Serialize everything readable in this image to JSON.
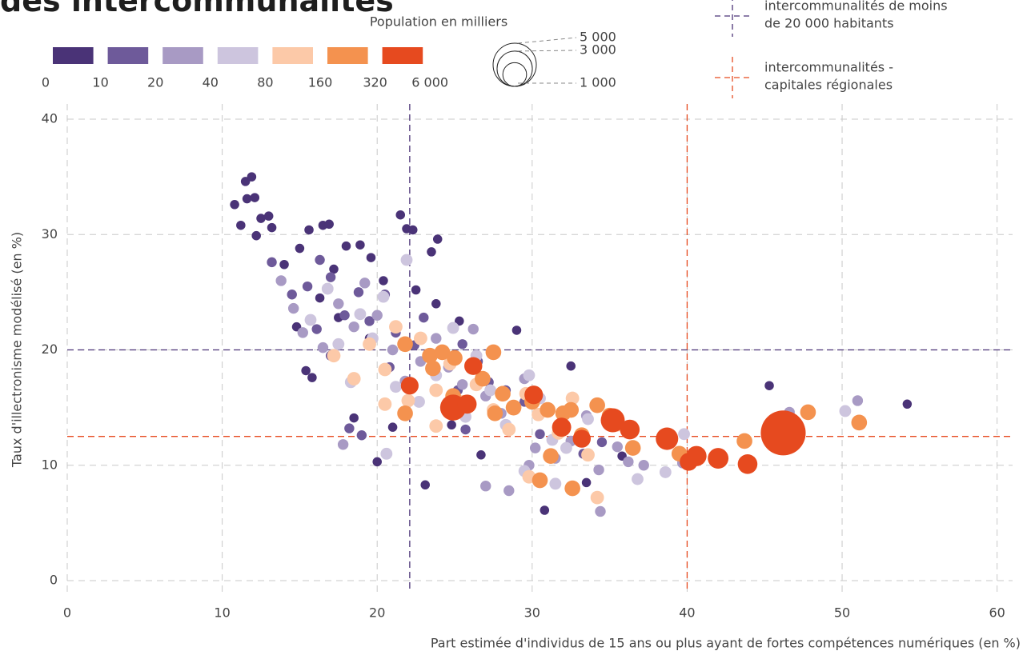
{
  "chart_data": {
    "type": "bubble",
    "title": "des intercommunalités",
    "x_label": "Part estimée d'individus de 15 ans ou plus ayant de fortes compétences numériques (en %)",
    "y_label": "Taux d'illectronisme modélisé (en %)",
    "xlim": [
      0,
      61
    ],
    "ylim": [
      0,
      40
    ],
    "xticks": [
      0,
      10,
      20,
      30,
      40,
      50,
      60
    ],
    "yticks": [
      0,
      10,
      20,
      30,
      40
    ],
    "grid": true,
    "classes": {
      "breaks": [
        0,
        10,
        20,
        40,
        80,
        160,
        320,
        {
          "value": 6000,
          "label": "6 000"
        }
      ],
      "colors": [
        "#4a3377",
        "#6e5a9a",
        "#a89ac4",
        "#cdc5de",
        "#fcc9a8",
        "#f4924f",
        "#e64a1f"
      ]
    },
    "size_legend": {
      "title": "Population en milliers",
      "values": [
        {
          "value": 5000,
          "label": "5 000"
        },
        {
          "value": 3000,
          "label": "3 000"
        },
        {
          "value": 1000,
          "label": "1 000"
        }
      ]
    },
    "reference_lines": [
      {
        "lines": [
          "intercommunalités de moins",
          "de 20 000 habitants"
        ],
        "color": "#4a3377",
        "x": 22.1,
        "y": 20
      },
      {
        "lines": [
          "intercommunalités -",
          "capitales régionales"
        ],
        "color": "#e64a1f",
        "x": 40,
        "y": 12.5
      }
    ],
    "series": [
      {
        "color": "#4a3377",
        "x": [
          10.8,
          11.5,
          11.9,
          11.6,
          12.1,
          11.2,
          12.5,
          13,
          12.2,
          13.2,
          14,
          15,
          15.6,
          16.5,
          16.9,
          14.8,
          15.4,
          15.8,
          16.3,
          17.2,
          18,
          18.9,
          19.6,
          20.4,
          21.5,
          21.9,
          22.3,
          23.5,
          23.9,
          22.5,
          23.8,
          25.3,
          29,
          32.5,
          23.1,
          24.8,
          26.7,
          30.8,
          33.5,
          35.8,
          45.3,
          54.2,
          18.5,
          19.5,
          17.5,
          20,
          21
        ],
        "values": [
          32.6,
          34.6,
          35,
          33.1,
          33.2,
          30.8,
          31.4,
          31.6,
          29.9,
          30.6,
          27.4,
          28.8,
          30.4,
          30.8,
          30.9,
          22,
          18.2,
          17.6,
          24.5,
          27,
          29,
          29.1,
          28,
          26,
          31.7,
          30.5,
          30.4,
          28.5,
          29.6,
          25.2,
          24,
          22.5,
          21.7,
          18.6,
          8.3,
          13.5,
          10.9,
          6.1,
          8.5,
          10.8,
          16.9,
          15.3,
          14.1,
          21,
          22.8,
          10.3,
          13.3
        ],
        "sizes": [
          6,
          6,
          6,
          6,
          6,
          6,
          6,
          6,
          6,
          6,
          6,
          6,
          6,
          6,
          6,
          6,
          6,
          6,
          6,
          6,
          6,
          6,
          6,
          6,
          6,
          6,
          6,
          6,
          6,
          6,
          6,
          6,
          6,
          6,
          6,
          6,
          6,
          6,
          6,
          6,
          6,
          6,
          6,
          6,
          6,
          6,
          6
        ]
      },
      {
        "color": "#6e5a9a",
        "x": [
          13.2,
          14.5,
          15.5,
          16.3,
          17,
          16.1,
          17,
          17.9,
          18.8,
          19.5,
          20.5,
          21.2,
          20.8,
          22.4,
          23,
          24.2,
          25.5,
          26.5,
          27.2,
          28.3,
          29.5,
          30.5,
          31.8,
          33.3,
          34.5,
          36.4,
          18.2,
          25.7,
          19,
          25.2
        ],
        "values": [
          27.6,
          24.8,
          25.5,
          27.8,
          26.3,
          21.8,
          19.5,
          23,
          25,
          22.5,
          24.8,
          21.5,
          18.5,
          20.4,
          22.8,
          20,
          20.5,
          19,
          17.2,
          16.5,
          15.5,
          12.7,
          13,
          11,
          12,
          11.4,
          13.2,
          13.1,
          12.6,
          16.5
        ],
        "sizes": [
          15,
          15,
          15,
          15,
          15,
          15,
          15,
          15,
          15,
          15,
          15,
          15,
          15,
          15,
          15,
          15,
          15,
          15,
          15,
          15,
          15,
          15,
          15,
          15,
          15,
          15,
          15,
          15,
          15,
          15
        ]
      },
      {
        "color": "#a89ac4",
        "x": [
          13.8,
          14.6,
          15.2,
          16.5,
          17.5,
          18.5,
          19.2,
          20,
          21,
          21.8,
          22.8,
          23.8,
          24.6,
          25.5,
          26.2,
          27,
          28,
          29.5,
          30.2,
          31.5,
          32.5,
          33.5,
          34.3,
          35.5,
          36.2,
          37.2,
          34.4,
          28.5,
          27,
          17.8,
          46.6,
          51,
          39.7,
          29.8
        ],
        "values": [
          26,
          23.6,
          21.5,
          20.2,
          24,
          22,
          25.8,
          23,
          20,
          17.3,
          19,
          21,
          18.5,
          17,
          21.8,
          16,
          14.5,
          17.5,
          11.5,
          10.6,
          12.1,
          14.3,
          9.6,
          11.6,
          10.3,
          10,
          6,
          7.8,
          8.2,
          11.8,
          14.6,
          15.6,
          10.2,
          10
        ],
        "sizes": [
          30,
          30,
          30,
          30,
          30,
          30,
          30,
          30,
          30,
          30,
          30,
          30,
          30,
          30,
          30,
          30,
          30,
          30,
          30,
          30,
          30,
          30,
          30,
          30,
          30,
          30,
          30,
          30,
          30,
          30,
          30,
          30,
          30,
          30
        ]
      },
      {
        "color": "#cdc5de",
        "x": [
          15.7,
          16.8,
          17.5,
          18.3,
          18.9,
          19.7,
          20.4,
          21.2,
          21.9,
          22.7,
          23.8,
          24.9,
          25.7,
          26.4,
          27.3,
          28.3,
          29.8,
          30.5,
          31.3,
          32.2,
          33.6,
          36.8,
          38.6,
          39.8,
          50.2,
          20.6,
          31.5,
          29.5
        ],
        "values": [
          22.6,
          25.3,
          20.5,
          17.2,
          23.1,
          21,
          24.6,
          16.8,
          27.8,
          15.5,
          17.8,
          21.9,
          14.2,
          19.5,
          16.5,
          13.5,
          17.8,
          15.8,
          12.2,
          11.5,
          14,
          8.8,
          9.4,
          12.7,
          14.7,
          11,
          8.4,
          9.5
        ],
        "sizes": [
          60,
          60,
          60,
          60,
          60,
          60,
          60,
          60,
          60,
          60,
          60,
          60,
          60,
          60,
          60,
          60,
          60,
          60,
          60,
          60,
          60,
          60,
          60,
          60,
          60,
          60,
          60,
          60
        ]
      },
      {
        "color": "#fcc9a8",
        "x": [
          17.2,
          18.5,
          19.5,
          20.5,
          21.2,
          22,
          22.8,
          23.8,
          24.7,
          25.5,
          26.4,
          27.5,
          28.5,
          29.6,
          30.4,
          31.7,
          32.6,
          33.6,
          34.2,
          29.8,
          20.5,
          35.5,
          23.8
        ],
        "values": [
          19.5,
          17.5,
          20.5,
          18.3,
          22,
          15.6,
          21,
          16.5,
          18.8,
          15.5,
          17,
          14.8,
          13.1,
          16.2,
          14.4,
          12.8,
          15.8,
          10.9,
          7.2,
          9,
          15.3,
          13.5,
          13.4
        ],
        "sizes": [
          120,
          120,
          120,
          120,
          120,
          120,
          120,
          120,
          120,
          120,
          120,
          120,
          120,
          120,
          120,
          120,
          120,
          120,
          120,
          120,
          120,
          120,
          120
        ]
      },
      {
        "color": "#f4924f",
        "x": [
          21.8,
          23.4,
          24.2,
          25,
          23.6,
          24.9,
          26.8,
          27.5,
          28.1,
          27.6,
          28.8,
          30,
          31,
          32,
          32.5,
          33.2,
          34.2,
          35,
          36.5,
          39.5,
          43.7,
          47.8,
          51.1,
          30.5,
          32.6,
          31.2,
          21.8
        ],
        "values": [
          20.5,
          19.5,
          19.8,
          19.3,
          18.4,
          16,
          17.5,
          19.8,
          16.2,
          14.5,
          15,
          15.5,
          14.8,
          14.5,
          14.8,
          12.6,
          15.2,
          14.3,
          11.5,
          11,
          12.1,
          14.6,
          13.7,
          8.7,
          8,
          10.8,
          14.5
        ],
        "sizes": [
          240,
          240,
          240,
          240,
          240,
          240,
          240,
          240,
          240,
          240,
          240,
          240,
          240,
          240,
          240,
          240,
          240,
          240,
          240,
          240,
          240,
          240,
          240,
          240,
          240,
          240,
          240
        ]
      },
      {
        "color": "#e64a1f",
        "x": [
          22.1,
          24.9,
          25.8,
          26.2,
          30.1,
          31.9,
          33.2,
          35.2,
          36.3,
          38.7,
          40.1,
          40.6,
          42,
          43.9,
          46.2
        ],
        "values": [
          16.9,
          15,
          15.3,
          18.6,
          16.1,
          13.3,
          12.3,
          13.9,
          13.1,
          12.3,
          10.3,
          10.8,
          10.6,
          10.1,
          12.8
        ],
        "sizes": [
          380,
          1300,
          500,
          400,
          450,
          500,
          400,
          1030,
          550,
          840,
          400,
          600,
          650,
          550,
          5500
        ]
      }
    ]
  }
}
